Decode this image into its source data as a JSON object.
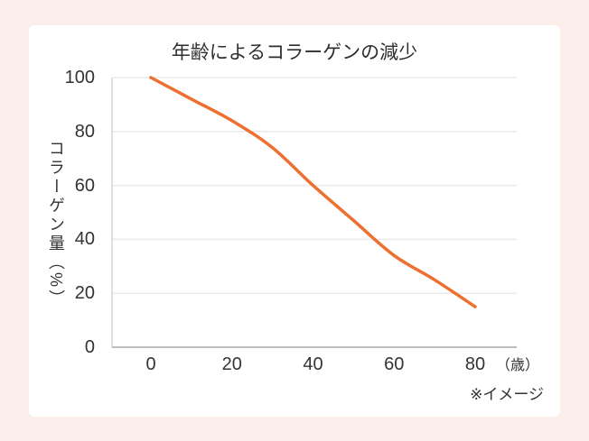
{
  "colors": {
    "background": "#fceeeb",
    "card": "#ffffff",
    "line": "#ed7031",
    "grid": "#eaeaea",
    "y_axis": "#d4d4d4",
    "x_axis": "#bdbdbd",
    "text": "#333333",
    "title_text": "#2e2e2e"
  },
  "chart_data": {
    "type": "line",
    "title": "年齢によるコラーゲンの減少",
    "ylabel": "コラーゲン量（%）",
    "xlabel": "",
    "x_unit_label": "（歳）",
    "note": "※イメージ",
    "x": [
      0,
      10,
      20,
      30,
      40,
      50,
      60,
      70,
      80
    ],
    "values": [
      100,
      92,
      84,
      74,
      60,
      47,
      34,
      25,
      15
    ],
    "x_ticks": [
      0,
      20,
      40,
      60,
      80
    ],
    "y_ticks": [
      0,
      20,
      40,
      60,
      80,
      100
    ],
    "xlim": [
      0,
      80
    ],
    "ylim": [
      0,
      100
    ],
    "grid": "horizontal",
    "legend": "none",
    "markers": "none"
  }
}
